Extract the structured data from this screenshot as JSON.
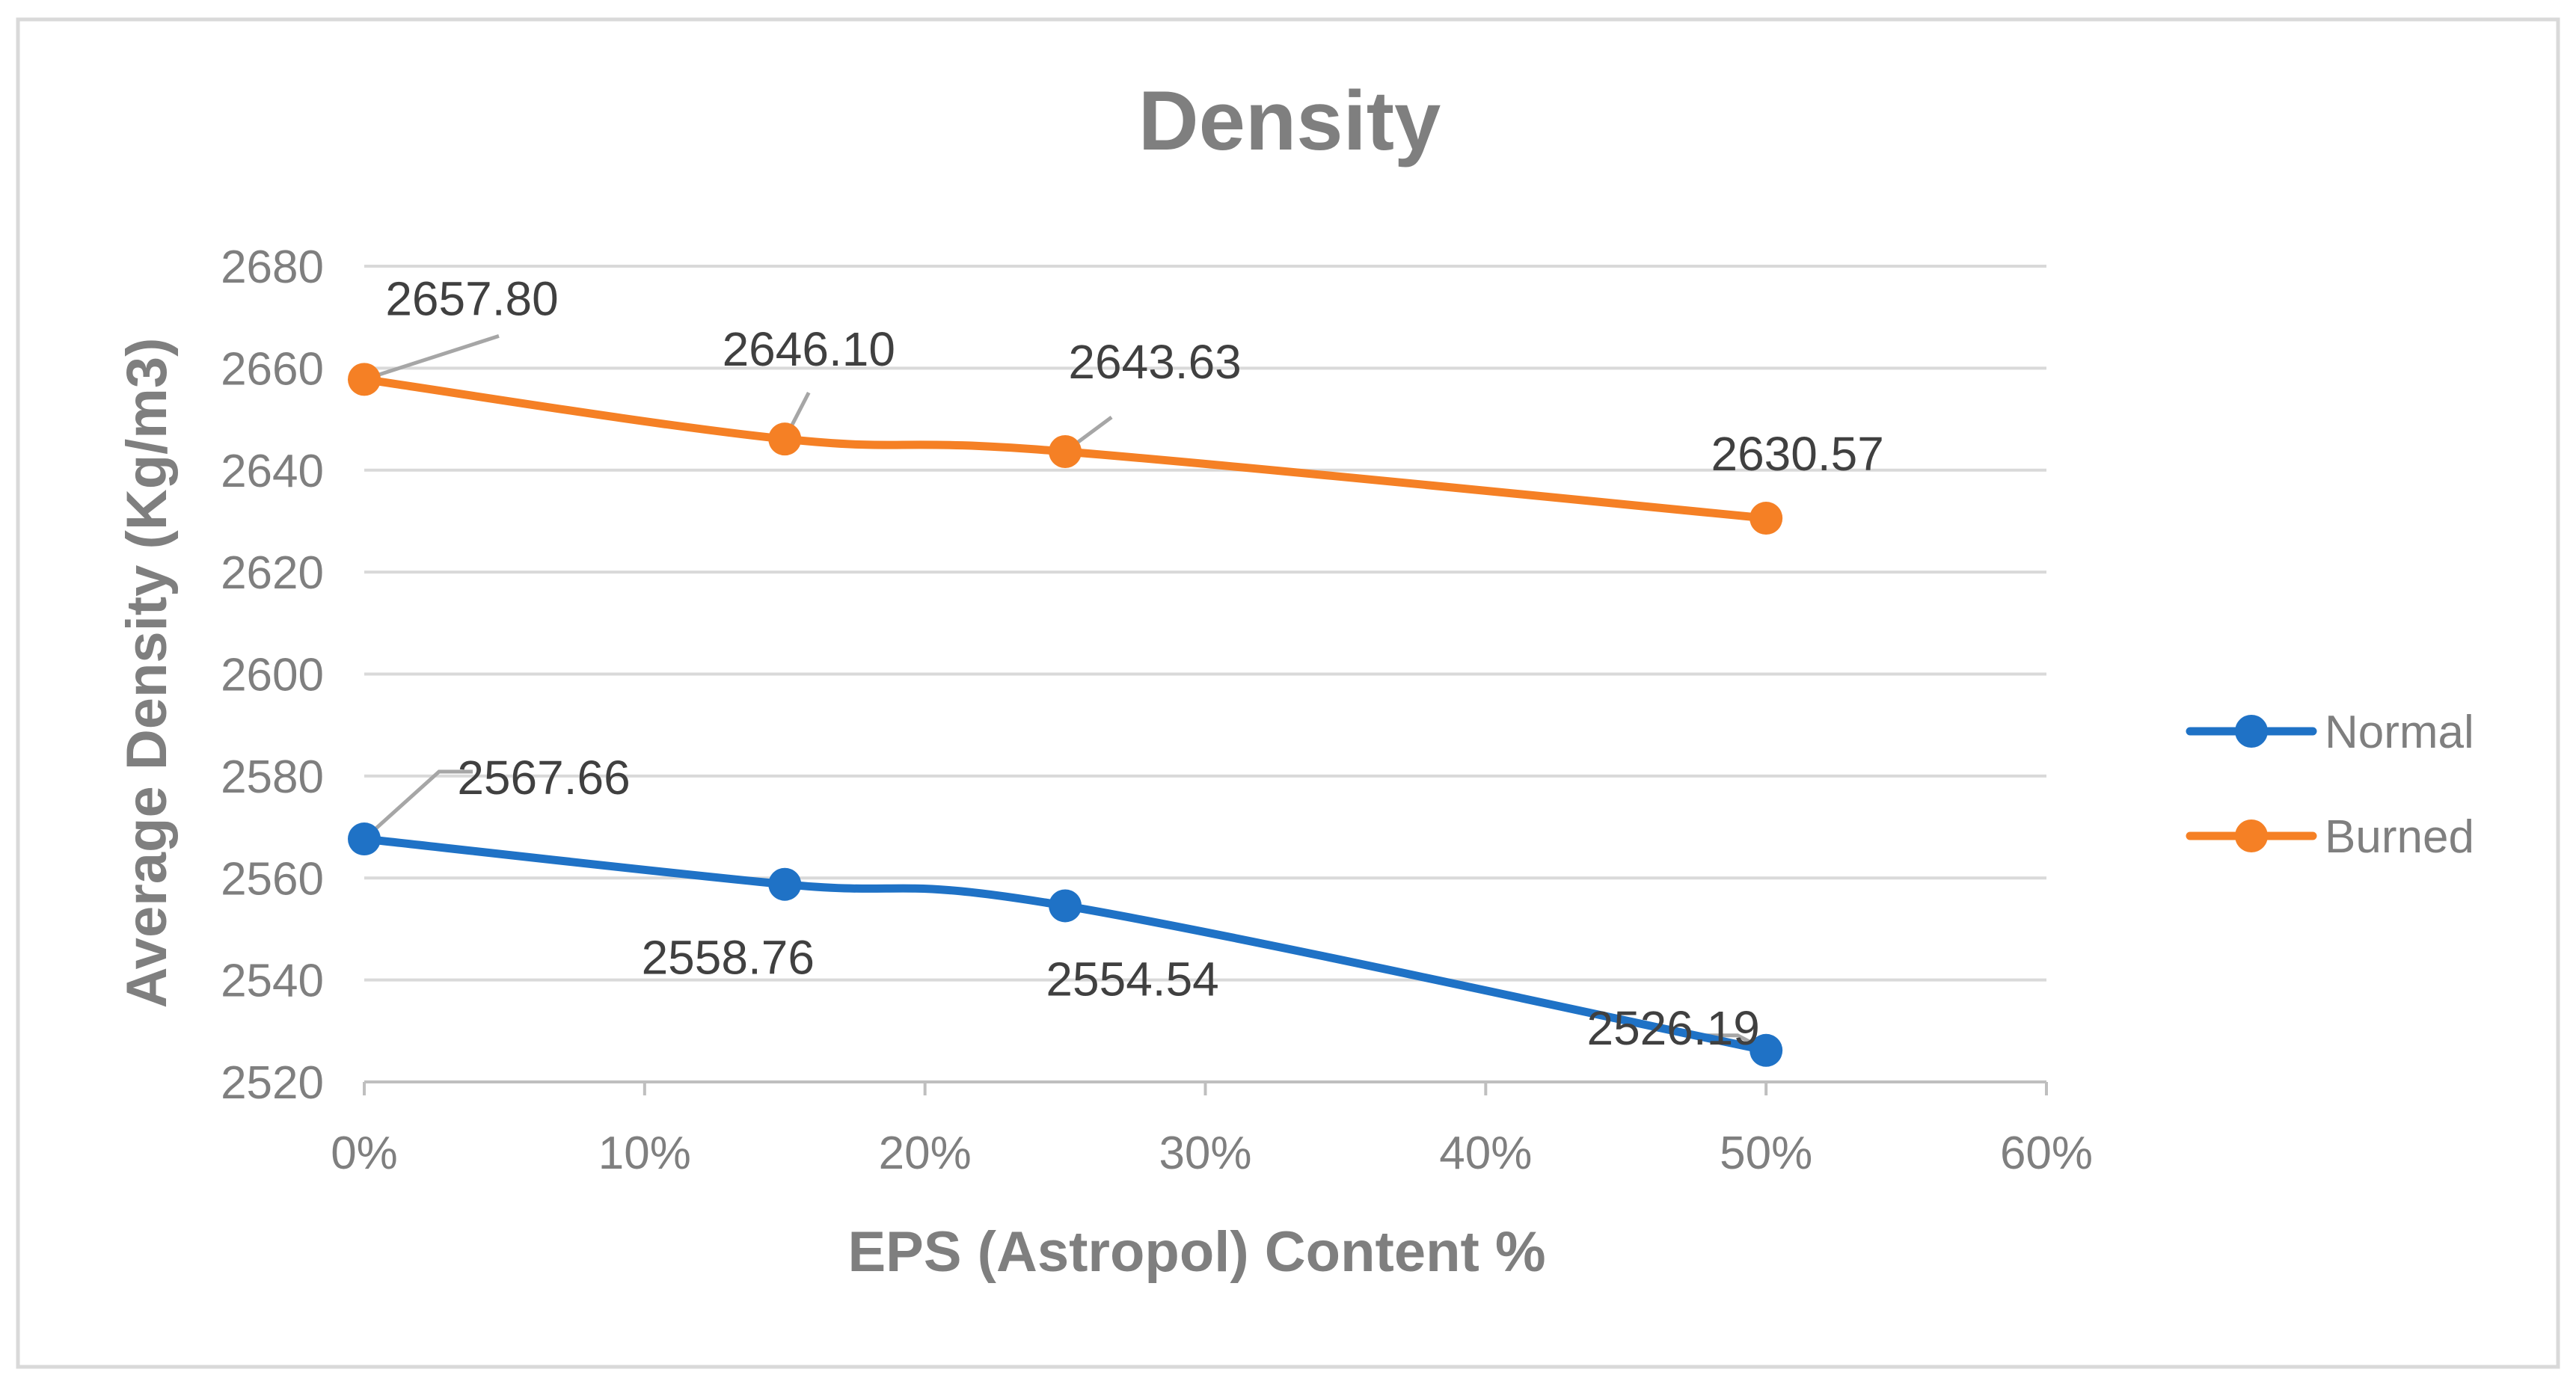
{
  "chart_data": {
    "type": "line",
    "title": "Density",
    "xlabel": "EPS (Astropol) Content %",
    "ylabel": "Average Density (Kg/m3)",
    "x": [
      0,
      15,
      25,
      50
    ],
    "xlim": [
      0,
      60
    ],
    "ylim": [
      2520,
      2680
    ],
    "x_ticks": [
      0,
      10,
      20,
      30,
      40,
      50,
      60
    ],
    "x_tick_labels": [
      "0%",
      "10%",
      "20%",
      "30%",
      "40%",
      "50%",
      "60%"
    ],
    "y_ticks": [
      2520,
      2540,
      2560,
      2580,
      2600,
      2620,
      2640,
      2660,
      2680
    ],
    "y_tick_labels": [
      "2520",
      "2540",
      "2560",
      "2580",
      "2600",
      "2620",
      "2640",
      "2660",
      "2680"
    ],
    "grid": true,
    "legend_position": "right",
    "series": [
      {
        "name": "Normal",
        "color": "#1F72C6",
        "values": [
          2567.66,
          2558.76,
          2554.54,
          2526.19
        ],
        "labels": [
          "2567.66",
          "2558.76",
          "2554.54",
          "2526.19"
        ]
      },
      {
        "name": "Burned",
        "color": "#F58025",
        "values": [
          2657.8,
          2646.1,
          2643.63,
          2630.57
        ],
        "labels": [
          "2657.80",
          "2646.10",
          "2643.63",
          "2630.57"
        ]
      }
    ]
  },
  "colors": {
    "text": "#7F7F7F",
    "label_text": "#404040",
    "grid": "#D9D9D9",
    "axis": "#BFBFBF",
    "frame": "#D9D9D9",
    "leader": "#A6A6A6"
  }
}
